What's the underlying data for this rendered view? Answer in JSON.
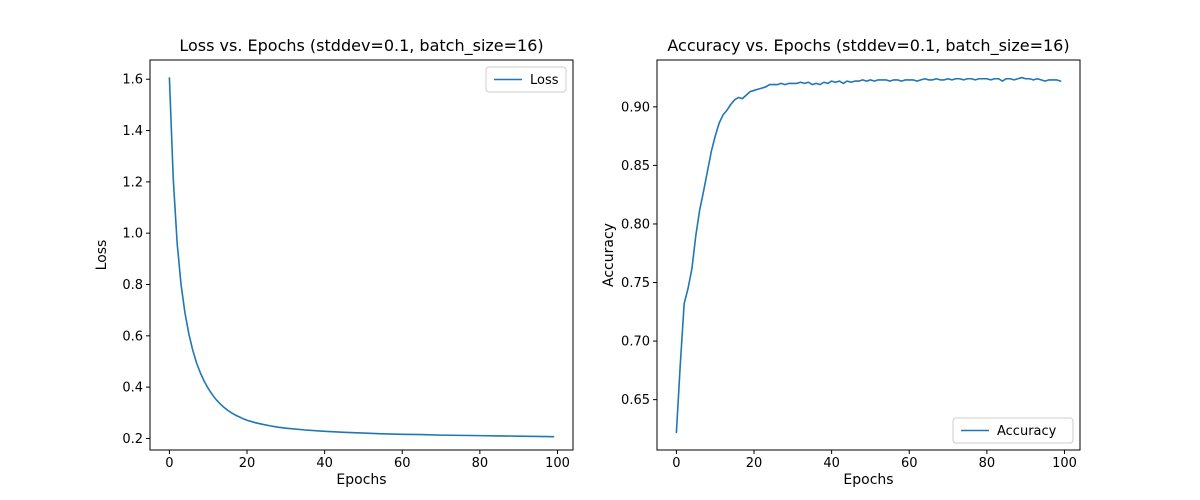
{
  "colors": {
    "line": "#1f77b4",
    "axis": "#000000",
    "legend_border": "#cccccc",
    "background": "#ffffff"
  },
  "chart_data": [
    {
      "type": "line",
      "title": "Loss vs. Epochs (stddev=0.1, batch_size=16)",
      "xlabel": "Epochs",
      "ylabel": "Loss",
      "xlim": [
        -5,
        104
      ],
      "ylim": [
        0.155,
        1.675
      ],
      "xticks": [
        0,
        20,
        40,
        60,
        80,
        100
      ],
      "yticks": [
        0.2,
        0.4,
        0.6,
        0.8,
        1.0,
        1.2,
        1.4,
        1.6
      ],
      "ytick_format": 1,
      "grid": false,
      "legend_loc": "upper right",
      "series": [
        {
          "name": "Loss",
          "x": [
            0,
            1,
            2,
            3,
            4,
            5,
            6,
            7,
            8,
            9,
            10,
            11,
            12,
            13,
            14,
            15,
            16,
            17,
            18,
            19,
            20,
            22,
            24,
            26,
            28,
            30,
            35,
            40,
            45,
            50,
            55,
            60,
            65,
            70,
            75,
            80,
            85,
            90,
            95,
            99
          ],
          "y": [
            1.605,
            1.21,
            0.96,
            0.8,
            0.69,
            0.608,
            0.545,
            0.494,
            0.455,
            0.422,
            0.395,
            0.372,
            0.352,
            0.336,
            0.322,
            0.31,
            0.3,
            0.291,
            0.284,
            0.277,
            0.271,
            0.262,
            0.255,
            0.249,
            0.244,
            0.24,
            0.233,
            0.228,
            0.224,
            0.221,
            0.218,
            0.216,
            0.215,
            0.213,
            0.212,
            0.211,
            0.21,
            0.209,
            0.208,
            0.207
          ]
        }
      ]
    },
    {
      "type": "line",
      "title": "Accuracy vs. Epochs (stddev=0.1, batch_size=16)",
      "xlabel": "Epochs",
      "ylabel": "Accuracy",
      "xlim": [
        -5,
        104
      ],
      "ylim": [
        0.607,
        0.94
      ],
      "xticks": [
        0,
        20,
        40,
        60,
        80,
        100
      ],
      "yticks": [
        0.65,
        0.7,
        0.75,
        0.8,
        0.85,
        0.9
      ],
      "ytick_format": 2,
      "grid": false,
      "legend_loc": "lower right",
      "series": [
        {
          "name": "Accuracy",
          "x": [
            0,
            1,
            2,
            3,
            4,
            5,
            6,
            7,
            8,
            9,
            10,
            11,
            12,
            13,
            14,
            15,
            16,
            17,
            18,
            19,
            20,
            21,
            22,
            23,
            24,
            25,
            26,
            27,
            28,
            29,
            30,
            31,
            32,
            33,
            34,
            35,
            36,
            37,
            38,
            39,
            40,
            41,
            42,
            43,
            44,
            45,
            46,
            47,
            48,
            49,
            50,
            51,
            52,
            53,
            54,
            55,
            56,
            57,
            58,
            59,
            60,
            61,
            62,
            63,
            64,
            65,
            66,
            67,
            68,
            69,
            70,
            71,
            72,
            73,
            74,
            75,
            76,
            77,
            78,
            79,
            80,
            81,
            82,
            83,
            84,
            85,
            86,
            87,
            88,
            89,
            90,
            91,
            92,
            93,
            94,
            95,
            96,
            97,
            98,
            99
          ],
          "y": [
            0.622,
            0.68,
            0.732,
            0.745,
            0.762,
            0.79,
            0.812,
            0.828,
            0.845,
            0.862,
            0.875,
            0.886,
            0.893,
            0.897,
            0.902,
            0.906,
            0.908,
            0.907,
            0.91,
            0.913,
            0.914,
            0.915,
            0.916,
            0.917,
            0.919,
            0.919,
            0.919,
            0.92,
            0.919,
            0.92,
            0.92,
            0.92,
            0.921,
            0.92,
            0.921,
            0.919,
            0.92,
            0.919,
            0.921,
            0.92,
            0.922,
            0.921,
            0.922,
            0.92,
            0.922,
            0.921,
            0.922,
            0.922,
            0.923,
            0.922,
            0.923,
            0.922,
            0.923,
            0.923,
            0.923,
            0.922,
            0.923,
            0.923,
            0.922,
            0.923,
            0.923,
            0.923,
            0.922,
            0.923,
            0.924,
            0.923,
            0.923,
            0.924,
            0.923,
            0.923,
            0.924,
            0.923,
            0.924,
            0.924,
            0.923,
            0.924,
            0.924,
            0.923,
            0.924,
            0.924,
            0.924,
            0.923,
            0.924,
            0.924,
            0.922,
            0.924,
            0.924,
            0.923,
            0.924,
            0.925,
            0.924,
            0.924,
            0.923,
            0.924,
            0.923,
            0.922,
            0.923,
            0.923,
            0.923,
            0.922
          ]
        }
      ]
    }
  ]
}
